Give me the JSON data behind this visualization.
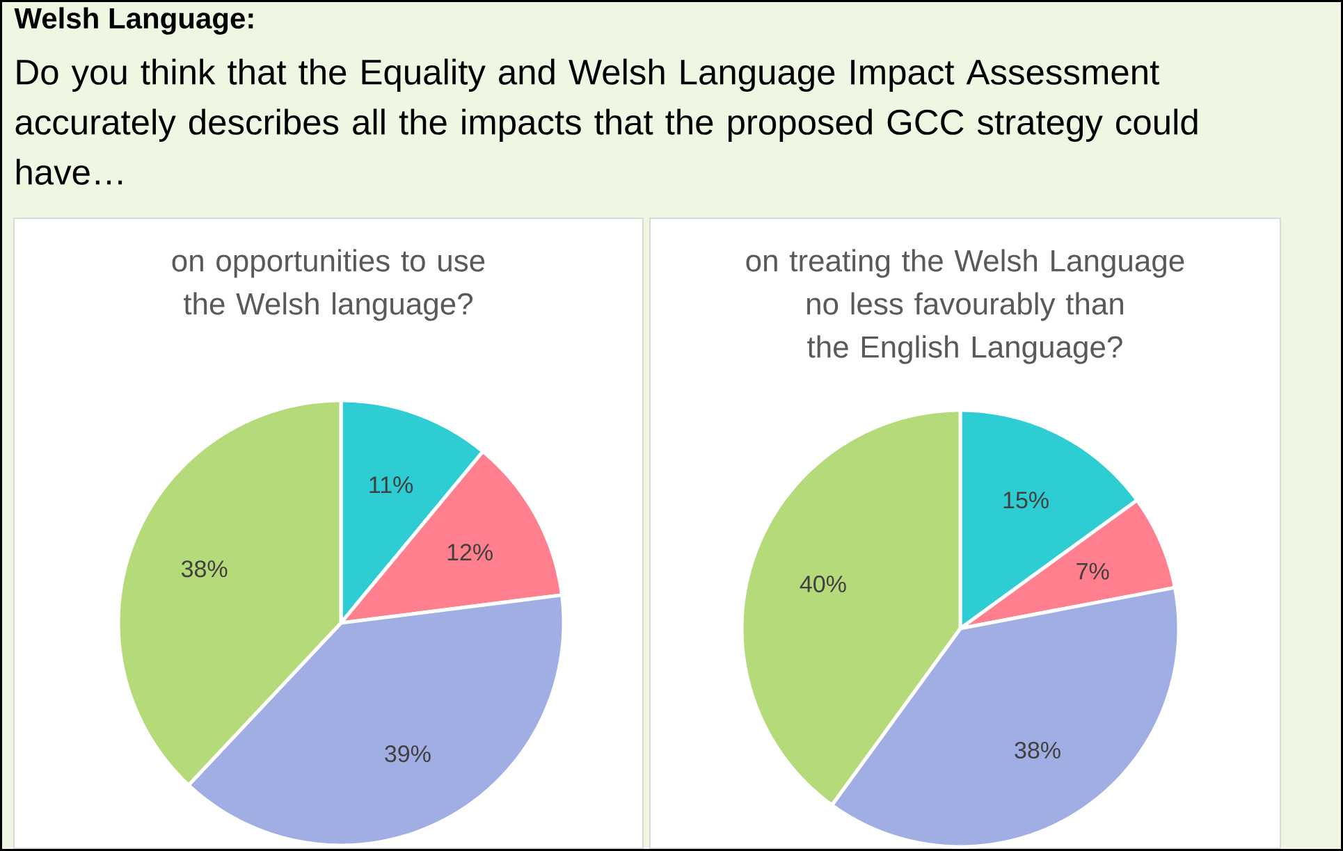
{
  "chart_data": [
    {
      "type": "other",
      "title": "Welsh Language:",
      "subtitle": "Do you think that the Equality and Welsh Language Impact Assessment accurately describes all the impacts that the proposed GCC strategy could have…"
    },
    {
      "type": "pie",
      "title": "on opportunities to use the Welsh language?",
      "categories": [
        null,
        null,
        null,
        null
      ],
      "values": [
        11,
        12,
        39,
        38
      ],
      "colors": [
        "#2ecdd3",
        "#ff7f8f",
        "#a0aee3",
        "#b5da7a"
      ],
      "value_labels": [
        "11%",
        "12%",
        "39%",
        "38%"
      ]
    },
    {
      "type": "pie",
      "title": "on treating the Welsh Language no less favourably than the English Language?",
      "categories": [
        null,
        null,
        null,
        null
      ],
      "values": [
        15,
        7,
        38,
        40
      ],
      "colors": [
        "#2ecdd3",
        "#ff7f8f",
        "#a0aee3",
        "#b5da7a"
      ],
      "value_labels": [
        "15%",
        "7%",
        "38%",
        "40%"
      ]
    }
  ]
}
